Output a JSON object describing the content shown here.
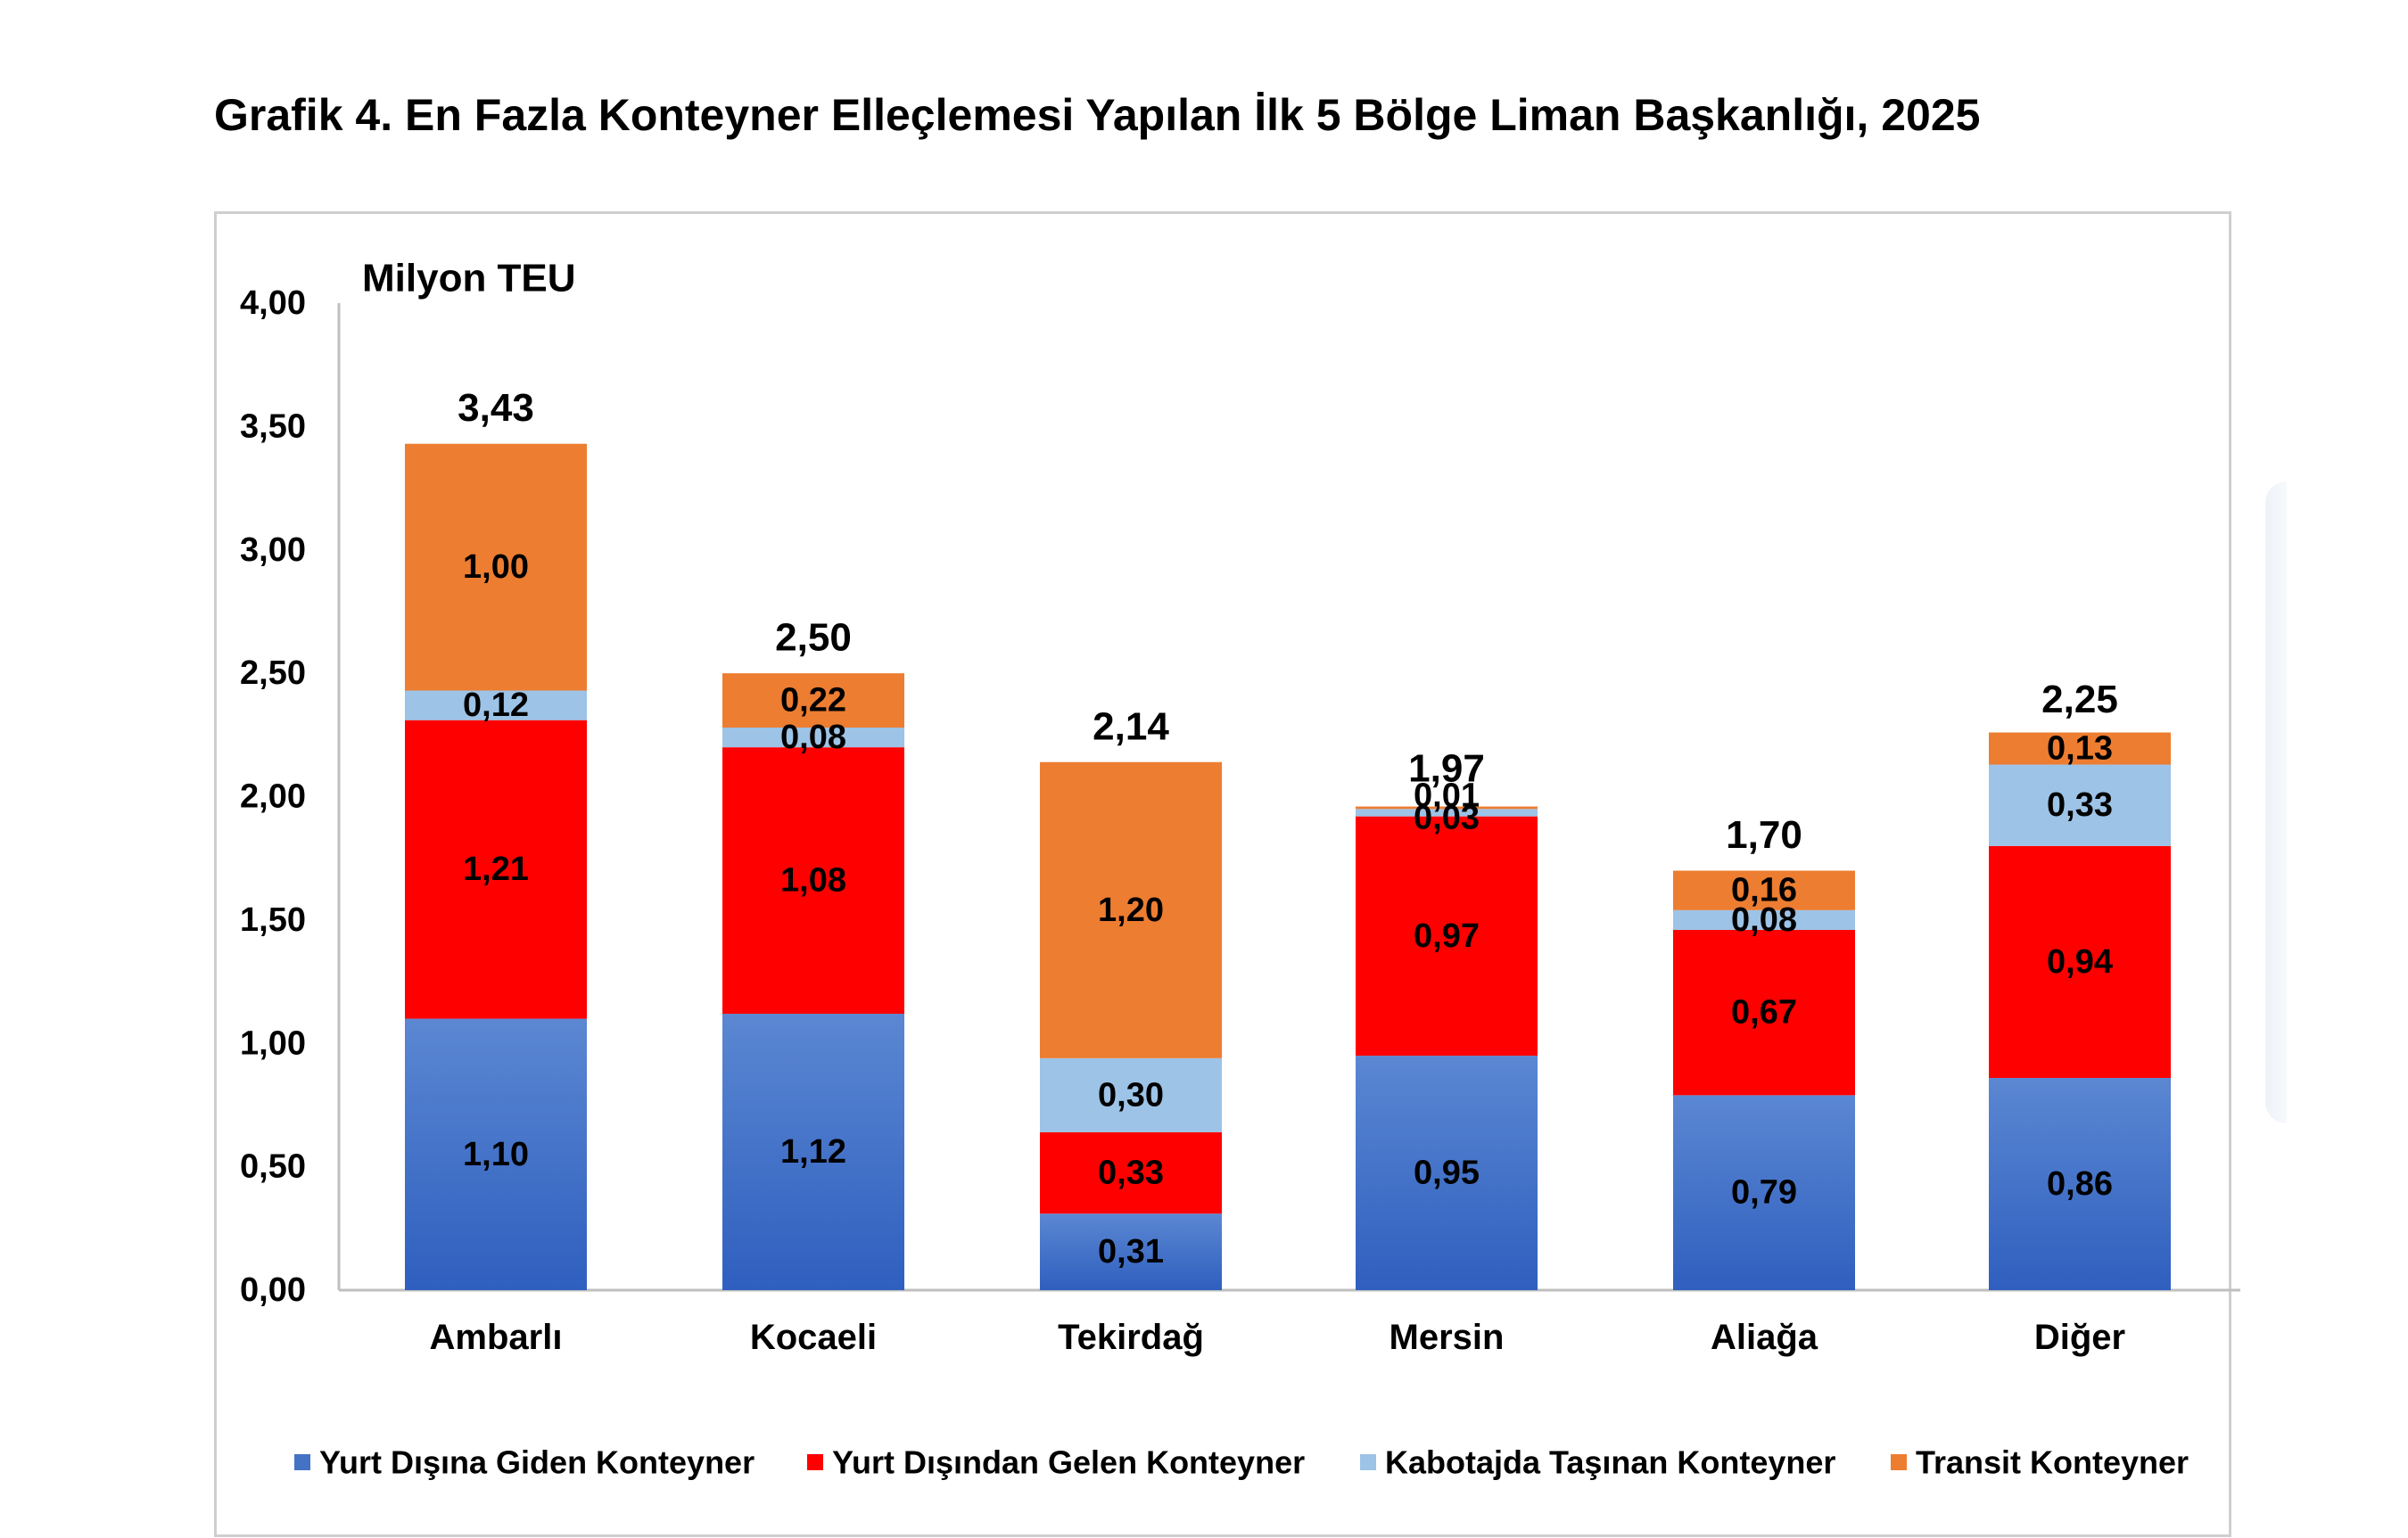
{
  "title": "Grafik 4. En Fazla Konteyner Elleçlemesi Yapılan İlk 5 Bölge Liman Başkanlığı, 2025",
  "chart_data": {
    "type": "bar",
    "stacked": true,
    "title": "Grafik 4. En Fazla Konteyner Elleçlemesi Yapılan İlk 5 Bölge Liman Başkanlığı, 2025",
    "ylabel": "Milyon TEU",
    "xlabel": "",
    "ylim": [
      0,
      4
    ],
    "yticks": [
      "0,00",
      "0,50",
      "1,00",
      "1,50",
      "2,00",
      "2,50",
      "3,00",
      "3,50",
      "4,00"
    ],
    "grid": false,
    "legend_position": "bottom",
    "categories": [
      "Ambarlı",
      "Kocaeli",
      "Tekirdağ",
      "Mersin",
      "Aliağa",
      "Diğer"
    ],
    "totals": [
      3.43,
      2.5,
      2.14,
      1.97,
      1.7,
      2.25
    ],
    "total_labels": [
      "3,43",
      "2,50",
      "2,14",
      "1,97",
      "1,70",
      "2,25"
    ],
    "series": [
      {
        "name": "Yurt Dışına Giden Konteyner",
        "color": "#4472C4",
        "values": [
          1.1,
          1.12,
          0.31,
          0.95,
          0.79,
          0.86
        ],
        "labels": [
          "1,10",
          "1,12",
          "0,31",
          "0,95",
          "0,79",
          "0,86"
        ]
      },
      {
        "name": "Yurt Dışından Gelen Konteyner",
        "color": "#FF0000",
        "values": [
          1.21,
          1.08,
          0.33,
          0.97,
          0.67,
          0.94
        ],
        "labels": [
          "1,21",
          "1,08",
          "0,33",
          "0,97",
          "0,67",
          "0,94"
        ]
      },
      {
        "name": "Kabotajda Taşınan Konteyner",
        "color": "#9DC3E6",
        "values": [
          0.12,
          0.08,
          0.3,
          0.03,
          0.08,
          0.33
        ],
        "labels": [
          "0,12",
          "0,08",
          "0,30",
          "0,03",
          "0,08",
          "0,33"
        ]
      },
      {
        "name": "Transit Konteyner",
        "color": "#ED7D31",
        "values": [
          1.0,
          0.22,
          1.2,
          0.01,
          0.16,
          0.13
        ],
        "labels": [
          "1,00",
          "0,22",
          "1,20",
          "0,01",
          "0,16",
          "0,13"
        ]
      }
    ]
  }
}
